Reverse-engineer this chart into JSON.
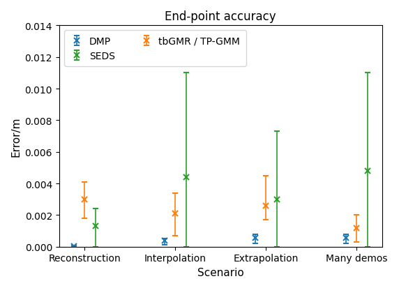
{
  "title": "End-point accuracy",
  "xlabel": "Scenario",
  "ylabel": "Error/m",
  "categories": [
    "Reconstruction",
    "Interpolation",
    "Extrapolation",
    "Many demos"
  ],
  "ylim": [
    0,
    0.014
  ],
  "yticks": [
    0.0,
    0.002,
    0.004,
    0.006,
    0.008,
    0.01,
    0.012,
    0.014
  ],
  "series": {
    "DMP": {
      "color": "#1f77b4",
      "means": [
        3e-05,
        0.00038,
        0.00055,
        0.00058
      ],
      "yerr_low": [
        3e-05,
        0.00028,
        0.00035,
        0.00035
      ],
      "yerr_high": [
        3e-05,
        0.00012,
        0.00025,
        0.00022
      ]
    },
    "tbGMR / TP-GMM": {
      "color": "#ff7f0e",
      "means": [
        0.003,
        0.0021,
        0.0026,
        0.0012
      ],
      "yerr_low": [
        0.0012,
        0.0014,
        0.0009,
        0.0009
      ],
      "yerr_high": [
        0.0011,
        0.0013,
        0.0019,
        0.0008
      ]
    },
    "SEDS": {
      "color": "#2ca02c",
      "means": [
        0.0013,
        0.0044,
        0.003,
        0.0048
      ],
      "yerr_low": [
        0.0013,
        0.0044,
        0.003,
        0.0048
      ],
      "yerr_high": [
        0.0011,
        0.0066,
        0.0043,
        0.0062
      ]
    }
  },
  "offsets": {
    "DMP": -0.12,
    "tbGMR / TP-GMM": 0.0,
    "SEDS": 0.12
  },
  "series_order": [
    "DMP",
    "tbGMR / TP-GMM",
    "SEDS"
  ],
  "legend_order": [
    "DMP",
    "SEDS",
    "tbGMR / TP-GMM"
  ],
  "legend_ncol": 2,
  "figsize": [
    5.72,
    4.14
  ],
  "dpi": 100
}
